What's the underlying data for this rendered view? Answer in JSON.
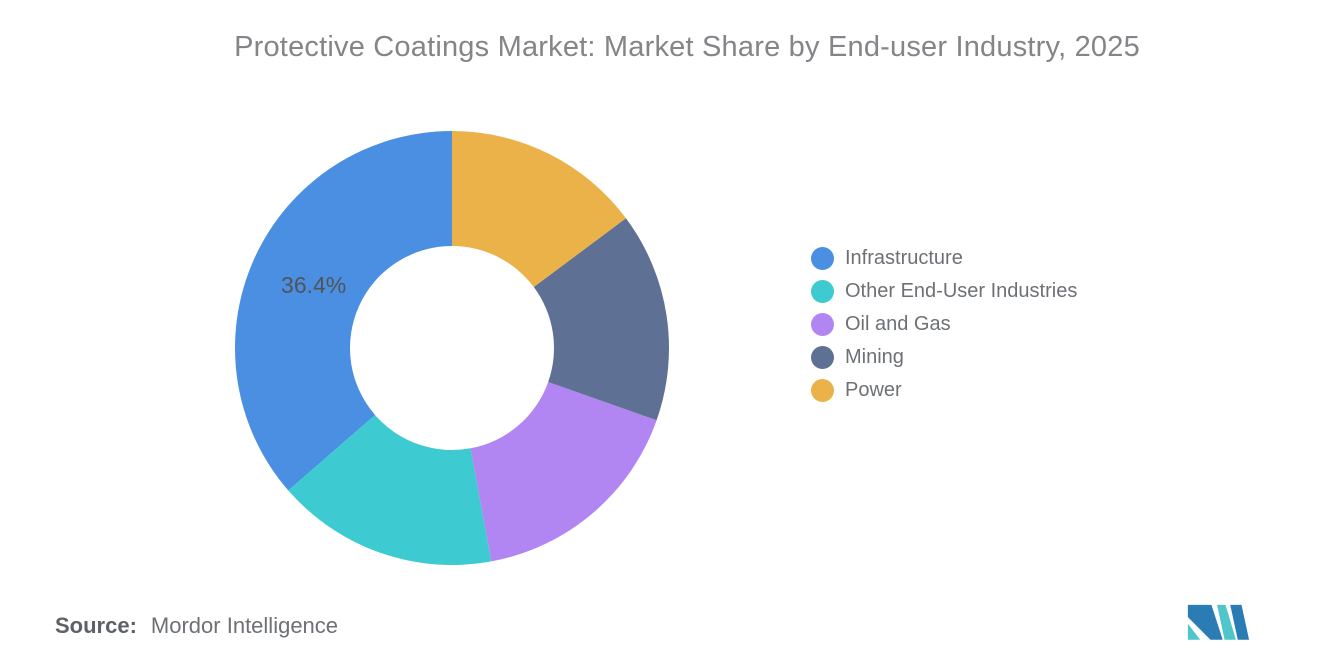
{
  "title": "Protective Coatings Market: Market Share by End-user Industry, 2025",
  "source": {
    "prefix": "Source:",
    "name": "Mordor Intelligence"
  },
  "logo": {
    "icon": "mordor-intelligence-logo",
    "navy": "#2B7CB4",
    "teal": "#4EC6CA"
  },
  "chart_data": {
    "type": "pie",
    "subtype": "donut",
    "title": "Protective Coatings Market: Market Share by End-user Industry, 2025",
    "units": "%",
    "start_angle": "top",
    "direction": "counterclockwise",
    "inner_radius_ratio": 0.47,
    "legend_position": "right",
    "slices": [
      {
        "name": "Infrastructure",
        "value": 36.4,
        "label": "36.4%",
        "color": "#4A8FE2"
      },
      {
        "name": "Other End-User Industries",
        "value": 16.5,
        "label": "",
        "color": "#3DCBD1"
      },
      {
        "name": "Oil and Gas",
        "value": 16.7,
        "label": "",
        "color": "#B186F2"
      },
      {
        "name": "Mining",
        "value": 15.6,
        "label": "",
        "color": "#5E7195"
      },
      {
        "name": "Power",
        "value": 14.8,
        "label": "",
        "color": "#EAB248"
      }
    ]
  }
}
